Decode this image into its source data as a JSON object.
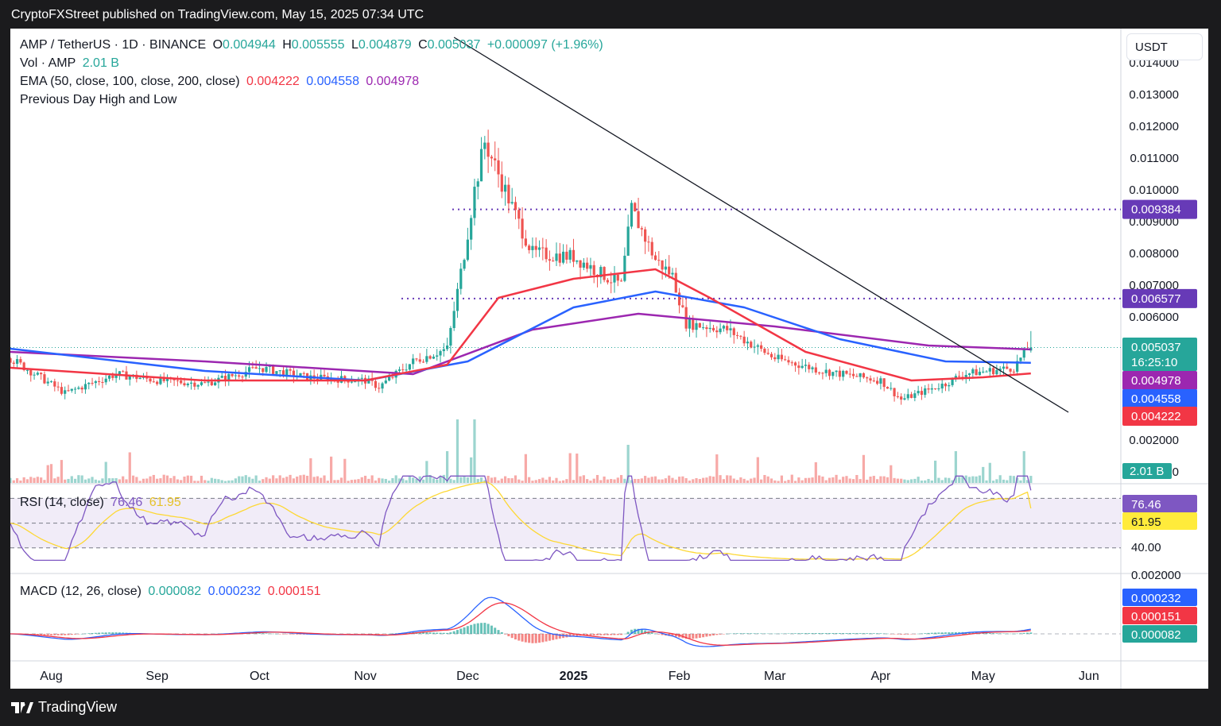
{
  "publisher_line": "CryptoFXStreet published on TradingView.com, May 15, 2025 07:34 UTC",
  "footer": {
    "brand": "TradingView"
  },
  "currency": "USDT",
  "legend": {
    "symbol": "AMP / TetherUS · 1D · BINANCE",
    "o_label": "O",
    "o_val": "0.004944",
    "h_label": "H",
    "h_val": "0.005555",
    "l_label": "L",
    "l_val": "0.004879",
    "c_label": "C",
    "c_val": "0.005037",
    "change": "+0.000097 (+1.96%)",
    "vol_label": "Vol · AMP",
    "vol_val": "2.01 B",
    "ema_label": "EMA (50, close, 100, close, 200, close)",
    "ema50": "0.004222",
    "ema100": "0.004558",
    "ema200": "0.004978",
    "pdhl": "Previous Day High and Low",
    "rsi_label": "RSI (14, close)",
    "rsi_val": "76.46",
    "rsi_ma": "61.95",
    "macd_label": "MACD (12, 26, close)",
    "macd_hist": "0.000082",
    "macd_line": "0.000232",
    "macd_signal": "0.000151"
  },
  "price_axis": [
    "0.014000",
    "0.013000",
    "0.012000",
    "0.011000",
    "0.010000",
    "0.009000",
    "0.008000",
    "0.007000",
    "0.006000",
    "0.002000",
    "0.000000"
  ],
  "price_tags": {
    "res1": "0.009384",
    "res2": "0.006577",
    "last": "0.005037",
    "countdown": "16:25:10",
    "ema200": "0.004978",
    "ema100": "0.004558",
    "ema50": "0.004222",
    "vol": "2.01 B"
  },
  "rsi_tags": {
    "rsi": "76.46",
    "ma": "61.95",
    "axis40": "40.00"
  },
  "macd_tags": {
    "macd": "0.000232",
    "signal": "0.000151",
    "hist": "0.000082",
    "axis_top": "0.002000"
  },
  "time_axis": [
    "Aug",
    "Sep",
    "Oct",
    "Nov",
    "Dec",
    "2025",
    "Feb",
    "Mar",
    "Apr",
    "May",
    "Jun"
  ],
  "colors": {
    "up": "#26a69a",
    "down": "#ef5350",
    "ema50": "#f23645",
    "ema100": "#2962ff",
    "ema200": "#9c27b0",
    "level": "#673ab7",
    "rsi": "#7e57c2",
    "rsi_ma": "#fdd835"
  },
  "chart_data": {
    "type": "candlestick",
    "symbol": "AMP/USDT",
    "interval": "1D",
    "x_range": [
      "2024-07-20",
      "2025-06-05"
    ],
    "ylim": [
      0,
      0.0145
    ],
    "levels": [
      0.009384,
      0.006577
    ],
    "trendline": {
      "from": [
        "2024-11-27",
        0.0148
      ],
      "to": [
        "2025-05-26",
        0.003
      ]
    },
    "price_path": [
      {
        "date": "2024-07-20",
        "close": 0.0047
      },
      {
        "date": "2024-08-05",
        "close": 0.0036
      },
      {
        "date": "2024-08-20",
        "close": 0.0042
      },
      {
        "date": "2024-09-01",
        "close": 0.004
      },
      {
        "date": "2024-09-15",
        "close": 0.0039
      },
      {
        "date": "2024-10-01",
        "close": 0.0044
      },
      {
        "date": "2024-10-15",
        "close": 0.0041
      },
      {
        "date": "2024-11-01",
        "close": 0.004
      },
      {
        "date": "2024-11-05",
        "close": 0.0038
      },
      {
        "date": "2024-11-15",
        "close": 0.0046
      },
      {
        "date": "2024-11-25",
        "close": 0.005
      },
      {
        "date": "2024-11-30",
        "close": 0.008
      },
      {
        "date": "2024-12-03",
        "close": 0.01
      },
      {
        "date": "2024-12-06",
        "close": 0.0115
      },
      {
        "date": "2024-12-10",
        "close": 0.0105
      },
      {
        "date": "2024-12-15",
        "close": 0.0092
      },
      {
        "date": "2024-12-20",
        "close": 0.008
      },
      {
        "date": "2025-01-01",
        "close": 0.0079
      },
      {
        "date": "2025-01-10",
        "close": 0.0073
      },
      {
        "date": "2025-01-15",
        "close": 0.007
      },
      {
        "date": "2025-01-18",
        "close": 0.0094
      },
      {
        "date": "2025-01-25",
        "close": 0.0078
      },
      {
        "date": "2025-01-30",
        "close": 0.0073
      },
      {
        "date": "2025-02-03",
        "close": 0.0058
      },
      {
        "date": "2025-02-15",
        "close": 0.0056
      },
      {
        "date": "2025-03-01",
        "close": 0.0047
      },
      {
        "date": "2025-03-15",
        "close": 0.0043
      },
      {
        "date": "2025-04-01",
        "close": 0.004
      },
      {
        "date": "2025-04-07",
        "close": 0.0034
      },
      {
        "date": "2025-04-20",
        "close": 0.0039
      },
      {
        "date": "2025-04-25",
        "close": 0.0042
      },
      {
        "date": "2025-05-10",
        "close": 0.0044
      },
      {
        "date": "2025-05-14",
        "close": 0.005
      },
      {
        "date": "2025-05-15",
        "open": 0.004944,
        "high": 0.005555,
        "low": 0.004879,
        "close": 0.005037
      }
    ],
    "ema50_path": [
      [
        "2024-07-20",
        0.0044
      ],
      [
        "2024-09-15",
        0.004
      ],
      [
        "2024-11-01",
        0.004
      ],
      [
        "2024-11-25",
        0.0045
      ],
      [
        "2024-12-10",
        0.0066
      ],
      [
        "2025-01-01",
        0.0072
      ],
      [
        "2025-01-25",
        0.0075
      ],
      [
        "2025-02-10",
        0.0066
      ],
      [
        "2025-03-10",
        0.0049
      ],
      [
        "2025-04-10",
        0.004
      ],
      [
        "2025-05-01",
        0.0041
      ],
      [
        "2025-05-15",
        0.004222
      ]
    ],
    "ema100_path": [
      [
        "2024-07-20",
        0.005
      ],
      [
        "2024-09-15",
        0.0043
      ],
      [
        "2024-11-01",
        0.004
      ],
      [
        "2024-12-01",
        0.0046
      ],
      [
        "2025-01-01",
        0.0063
      ],
      [
        "2025-01-25",
        0.0068
      ],
      [
        "2025-02-20",
        0.0063
      ],
      [
        "2025-03-20",
        0.0053
      ],
      [
        "2025-04-20",
        0.0046
      ],
      [
        "2025-05-15",
        0.004558
      ]
    ],
    "ema200_path": [
      [
        "2024-07-20",
        0.0049
      ],
      [
        "2024-09-15",
        0.0046
      ],
      [
        "2024-11-15",
        0.0042
      ],
      [
        "2024-12-20",
        0.0056
      ],
      [
        "2025-01-20",
        0.0061
      ],
      [
        "2025-03-01",
        0.0057
      ],
      [
        "2025-04-15",
        0.0051
      ],
      [
        "2025-05-15",
        0.004978
      ]
    ],
    "volume": {
      "last": "2.01 B",
      "spikes": [
        [
          "2024-11-28",
          1.0
        ],
        [
          "2024-12-03",
          1.0
        ],
        [
          "2024-11-25",
          0.5
        ],
        [
          "2025-01-17",
          0.6
        ],
        [
          "2025-04-23",
          0.5
        ],
        [
          "2025-05-13",
          0.5
        ]
      ]
    },
    "rsi": {
      "last": 76.46,
      "ma": 61.95,
      "bands": [
        70,
        50,
        30
      ]
    },
    "macd": {
      "macd": 0.000232,
      "signal": 0.000151,
      "hist": 8.2e-05
    }
  }
}
